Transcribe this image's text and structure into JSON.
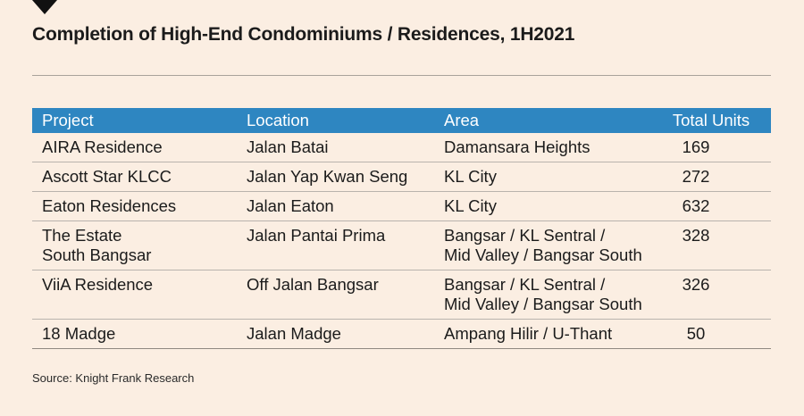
{
  "title": "Completion of High-End Condominiums / Residences, 1H2021",
  "table": {
    "headers": {
      "project": "Project",
      "location": "Location",
      "area": "Area",
      "units": "Total Units"
    },
    "rows": [
      {
        "project": [
          "AIRA Residence"
        ],
        "location": [
          "Jalan Batai"
        ],
        "area": [
          "Damansara Heights"
        ],
        "units": "169"
      },
      {
        "project": [
          "Ascott Star KLCC"
        ],
        "location": [
          "Jalan Yap Kwan Seng"
        ],
        "area": [
          "KL City"
        ],
        "units": "272"
      },
      {
        "project": [
          "Eaton Residences"
        ],
        "location": [
          "Jalan Eaton"
        ],
        "area": [
          "KL City"
        ],
        "units": "632"
      },
      {
        "project": [
          "The Estate",
          "South Bangsar"
        ],
        "location": [
          "Jalan Pantai Prima"
        ],
        "area": [
          "Bangsar / KL Sentral /",
          "Mid Valley / Bangsar South"
        ],
        "units": "328"
      },
      {
        "project": [
          "ViiA Residence"
        ],
        "location": [
          "Off Jalan Bangsar"
        ],
        "area": [
          "Bangsar / KL Sentral /",
          "Mid Valley / Bangsar South"
        ],
        "units": "326"
      },
      {
        "project": [
          "18 Madge"
        ],
        "location": [
          "Jalan Madge"
        ],
        "area": [
          "Ampang Hilir / U-Thant"
        ],
        "units": "50"
      }
    ]
  },
  "source": "Source: Knight Frank Research",
  "colors": {
    "background": "#fbeee2",
    "header_fill": "#2e86c1",
    "header_text": "#ffffff"
  }
}
